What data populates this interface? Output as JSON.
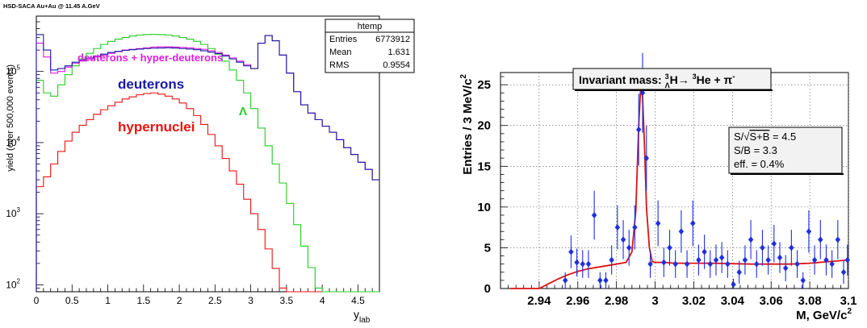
{
  "page_title": "HSD-SACA Au+Au @ 11.45 A.GeV",
  "colors": {
    "deuterons": "#1a1aa0",
    "hyper_deuterons": "#e01ee0",
    "lambda": "#22cc22",
    "hypernuclei": "#ee1111",
    "fit": "#dd1111",
    "points": "#1f2fe0",
    "box_bg": "#f2f2f2"
  },
  "chart_data": [
    {
      "type": "line",
      "step": true,
      "log_y": true,
      "xlabel": "y",
      "xlabel_sub": "lab",
      "ylabel": "yield (over 500,000 events)",
      "xlim": [
        0,
        4.8
      ],
      "ylim": [
        80,
        600000
      ],
      "x_ticks": [
        "0",
        "0.5",
        "1",
        "1.5",
        "2",
        "2.5",
        "3",
        "3.5",
        "4",
        "4.5"
      ],
      "x_tick_values": [
        0,
        0.5,
        1,
        1.5,
        2,
        2.5,
        3,
        3.5,
        4,
        4.5
      ],
      "y_tick_values": [
        100,
        1000,
        10000,
        100000
      ],
      "y_ticks": [
        "10",
        "10",
        "10",
        "10"
      ],
      "y_tick_exp": [
        "2",
        "3",
        "4",
        "5"
      ],
      "bin_width": 0.1,
      "stats_box": {
        "title": "htemp",
        "rows": [
          {
            "label": "Entries",
            "value": "6773912"
          },
          {
            "label": "Mean",
            "value": "1.631"
          },
          {
            "label": "RMS",
            "value": "0.9554"
          }
        ]
      },
      "annotations": [
        {
          "text": "deuterons + hyper-deuterons",
          "color_key": "hyper_deuterons"
        },
        {
          "text": "deuterons",
          "color_key": "deuterons"
        },
        {
          "text": "hypernuclei",
          "color_key": "hypernuclei"
        },
        {
          "text": "Λ",
          "color_key": "lambda"
        }
      ],
      "series": [
        {
          "name": "deuterons + hyper-deuterons",
          "color_key": "hyper_deuterons",
          "values": [
            250000,
            160000,
            95000,
            100000,
            115000,
            130000,
            140000,
            150000,
            160000,
            170000,
            180000,
            190000,
            200000,
            205000,
            210000,
            215000,
            220000,
            222000,
            222000,
            220000,
            218000,
            215000,
            210000,
            205000,
            195000,
            185000,
            170000,
            155000,
            140000,
            125000,
            110000,
            250000,
            320000,
            270000,
            170000,
            95000,
            52000,
            34000,
            26000,
            21000,
            17000,
            14000,
            11000,
            8500,
            6800,
            5300,
            4200,
            3000
          ]
        },
        {
          "name": "deuterons",
          "color_key": "deuterons",
          "values": [
            330000,
            200000,
            105000,
            110000,
            120000,
            135000,
            145000,
            155000,
            165000,
            175000,
            185000,
            192000,
            198000,
            202000,
            206000,
            210000,
            212000,
            214000,
            215000,
            213000,
            210000,
            207000,
            202000,
            195000,
            187000,
            178000,
            165000,
            150000,
            135000,
            120000,
            110000,
            250000,
            320000,
            270000,
            170000,
            95000,
            52000,
            34000,
            26000,
            21000,
            17000,
            14000,
            11000,
            8500,
            6800,
            5300,
            4200,
            3000
          ]
        },
        {
          "name": "Λ",
          "color_key": "lambda",
          "values": [
            75000,
            50000,
            45000,
            65000,
            90000,
            120000,
            150000,
            180000,
            210000,
            240000,
            265000,
            285000,
            300000,
            315000,
            325000,
            330000,
            332000,
            330000,
            325000,
            315000,
            300000,
            285000,
            265000,
            240000,
            210000,
            175000,
            140000,
            105000,
            75000,
            50000,
            30000,
            16000,
            9000,
            5000,
            2700,
            1400,
            700,
            350,
            175,
            90,
            80,
            80,
            80,
            80,
            80,
            80,
            80,
            80
          ]
        },
        {
          "name": "hypernuclei",
          "color_key": "hypernuclei",
          "values": [
            2400,
            3300,
            5000,
            7500,
            10500,
            14000,
            17500,
            21000,
            25000,
            29000,
            33000,
            37000,
            41000,
            44000,
            47000,
            49000,
            50000,
            48000,
            45000,
            41000,
            36000,
            30000,
            24000,
            18000,
            13000,
            9000,
            6000,
            4000,
            2600,
            1600,
            1000,
            600,
            320,
            170,
            90,
            80,
            80,
            80,
            80,
            80,
            80,
            80,
            80,
            80,
            80,
            80,
            80,
            80
          ]
        }
      ]
    },
    {
      "type": "scatter",
      "title": "Invariant mass:",
      "title_reaction": "H→ He + π",
      "xlabel": "M, GeV/c",
      "xlabel_sup": "2",
      "ylabel": "Entries / 3 MeV/c",
      "ylabel_sup": "2",
      "xlim": [
        2.92,
        3.1
      ],
      "ylim": [
        0,
        26.5
      ],
      "x_ticks": [
        "2.94",
        "2.96",
        "2.98",
        "3",
        "3.02",
        "3.04",
        "3.06",
        "3.08",
        "3.1"
      ],
      "x_tick_values": [
        2.94,
        2.96,
        2.98,
        3.0,
        3.02,
        3.04,
        3.06,
        3.08,
        3.1
      ],
      "y_ticks": [
        "0",
        "5",
        "10",
        "15",
        "20",
        "25"
      ],
      "y_tick_values": [
        0,
        5,
        10,
        15,
        20,
        25
      ],
      "grid": true,
      "info_box": {
        "line1_prefix": "S/",
        "line1_root": "S+B",
        "line1_suffix": " = 4.5",
        "line2": "S/B = 3.3",
        "line3": "eff. = 0.4%"
      },
      "points": [
        {
          "x": 2.9535,
          "y": 1.0,
          "err": 1.0
        },
        {
          "x": 2.9565,
          "y": 4.5,
          "err": 2.0
        },
        {
          "x": 2.9595,
          "y": 3.2,
          "err": 1.7
        },
        {
          "x": 2.9625,
          "y": 3.0,
          "err": 1.7
        },
        {
          "x": 2.9655,
          "y": 3.0,
          "err": 1.7
        },
        {
          "x": 2.9685,
          "y": 9.0,
          "err": 3.0
        },
        {
          "x": 2.9715,
          "y": 1.0,
          "err": 1.0
        },
        {
          "x": 2.9745,
          "y": 1.0,
          "err": 1.0
        },
        {
          "x": 2.9775,
          "y": 3.5,
          "err": 1.8
        },
        {
          "x": 2.9805,
          "y": 7.5,
          "err": 2.7
        },
        {
          "x": 2.9835,
          "y": 6.0,
          "err": 2.4
        },
        {
          "x": 2.9865,
          "y": 5.0,
          "err": 2.2
        },
        {
          "x": 2.9895,
          "y": 7.5,
          "err": 2.7
        },
        {
          "x": 2.9915,
          "y": 19.5,
          "err": 4.4
        },
        {
          "x": 2.9935,
          "y": 24.0,
          "err": 4.9
        },
        {
          "x": 2.9955,
          "y": 16.0,
          "err": 4.0
        },
        {
          "x": 2.9975,
          "y": 3.0,
          "err": 1.7
        },
        {
          "x": 3.0015,
          "y": 8.0,
          "err": 2.8
        },
        {
          "x": 3.0045,
          "y": 3.2,
          "err": 1.8
        },
        {
          "x": 3.0075,
          "y": 5.0,
          "err": 2.2
        },
        {
          "x": 3.0105,
          "y": 3.0,
          "err": 1.7
        },
        {
          "x": 3.0135,
          "y": 7.0,
          "err": 2.6
        },
        {
          "x": 3.0165,
          "y": 3.0,
          "err": 1.7
        },
        {
          "x": 3.0195,
          "y": 8.0,
          "err": 2.8
        },
        {
          "x": 3.0225,
          "y": 3.5,
          "err": 1.9
        },
        {
          "x": 3.0255,
          "y": 4.5,
          "err": 2.1
        },
        {
          "x": 3.0285,
          "y": 3.0,
          "err": 1.7
        },
        {
          "x": 3.0315,
          "y": 3.5,
          "err": 1.9
        },
        {
          "x": 3.0345,
          "y": 3.8,
          "err": 1.9
        },
        {
          "x": 3.0375,
          "y": 3.0,
          "err": 1.7
        },
        {
          "x": 3.0405,
          "y": 0.5,
          "err": 0.7
        },
        {
          "x": 3.0435,
          "y": 2.0,
          "err": 1.4
        },
        {
          "x": 3.0465,
          "y": 3.5,
          "err": 1.8
        },
        {
          "x": 3.0495,
          "y": 6.0,
          "err": 2.4
        },
        {
          "x": 3.0525,
          "y": 3.0,
          "err": 1.7
        },
        {
          "x": 3.0555,
          "y": 5.0,
          "err": 2.2
        },
        {
          "x": 3.0585,
          "y": 3.5,
          "err": 1.8
        },
        {
          "x": 3.0615,
          "y": 5.5,
          "err": 2.3
        },
        {
          "x": 3.0645,
          "y": 3.8,
          "err": 1.9
        },
        {
          "x": 3.0675,
          "y": 2.5,
          "err": 1.6
        },
        {
          "x": 3.0705,
          "y": 5.0,
          "err": 2.2
        },
        {
          "x": 3.0735,
          "y": 3.0,
          "err": 1.7
        },
        {
          "x": 3.0765,
          "y": 1.0,
          "err": 1.0
        },
        {
          "x": 3.0795,
          "y": 7.0,
          "err": 2.6
        },
        {
          "x": 3.0825,
          "y": 3.5,
          "err": 1.8
        },
        {
          "x": 3.0855,
          "y": 6.0,
          "err": 2.4
        },
        {
          "x": 3.0885,
          "y": 3.5,
          "err": 1.9
        },
        {
          "x": 3.0915,
          "y": 3.0,
          "err": 1.7
        },
        {
          "x": 3.0945,
          "y": 6.0,
          "err": 2.4
        },
        {
          "x": 3.0975,
          "y": 2.0,
          "err": 1.4
        },
        {
          "x": 3.0995,
          "y": 3.5,
          "err": 1.9
        }
      ],
      "fit_curve": {
        "x": [
          2.925,
          2.935,
          2.94,
          2.945,
          2.95,
          2.955,
          2.96,
          2.965,
          2.97,
          2.975,
          2.98,
          2.985,
          2.988,
          2.99,
          2.9915,
          2.9925,
          2.9935,
          2.9945,
          2.9955,
          2.997,
          2.9985,
          3.0,
          3.005,
          3.01,
          3.02,
          3.03,
          3.04,
          3.05,
          3.06,
          3.07,
          3.08,
          3.09,
          3.1
        ],
        "y": [
          0,
          0,
          0,
          0.6,
          1.2,
          1.7,
          2.1,
          2.4,
          2.6,
          2.8,
          3.0,
          3.2,
          4.5,
          9.5,
          20.0,
          24.5,
          23.5,
          17.5,
          10.0,
          5.0,
          3.3,
          3.2,
          3.2,
          3.1,
          3.1,
          3.1,
          3.05,
          3.0,
          3.0,
          3.0,
          3.1,
          3.3,
          3.5
        ]
      }
    }
  ]
}
